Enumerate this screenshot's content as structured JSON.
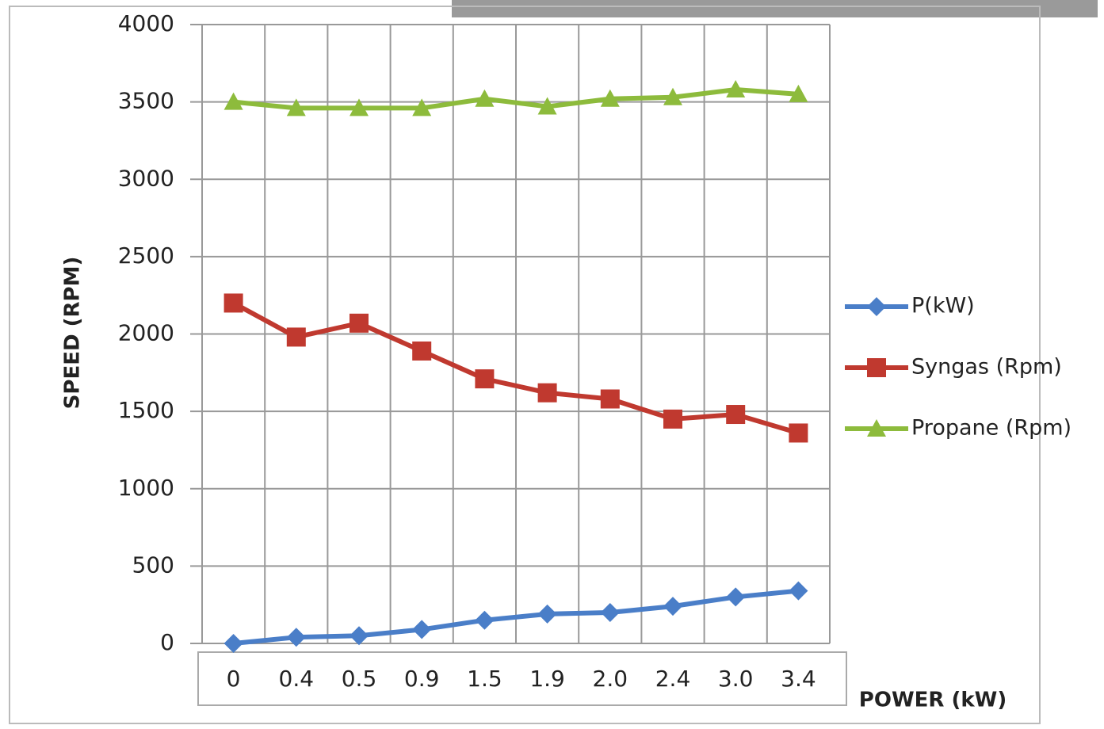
{
  "chart_data": {
    "type": "line",
    "x_label": "POWER (kW)",
    "y_label": "SPEED (RPM)",
    "categories": [
      "0",
      "0.4",
      "0.5",
      "0.9",
      "1.5",
      "1.9",
      "2.0",
      "2.4",
      "3.0",
      "3.4"
    ],
    "series": [
      {
        "name": "P(kW)",
        "color": "#4a7ec8",
        "marker": "diamond",
        "values": [
          0,
          40,
          50,
          90,
          150,
          190,
          200,
          240,
          300,
          340
        ]
      },
      {
        "name": "Syngas (Rpm)",
        "color": "#c0392f",
        "marker": "square",
        "values": [
          2200,
          1980,
          2070,
          1890,
          1710,
          1620,
          1580,
          1450,
          1480,
          1360
        ]
      },
      {
        "name": "Propane (Rpm)",
        "color": "#8dbb3c",
        "marker": "triangle",
        "values": [
          3500,
          3460,
          3460,
          3460,
          3520,
          3470,
          3520,
          3530,
          3580,
          3550
        ]
      }
    ],
    "ylim": [
      0,
      4000
    ],
    "yticks": [
      0,
      500,
      1000,
      1500,
      2000,
      2500,
      3000,
      3500,
      4000
    ],
    "grid": true,
    "legend": "right"
  }
}
